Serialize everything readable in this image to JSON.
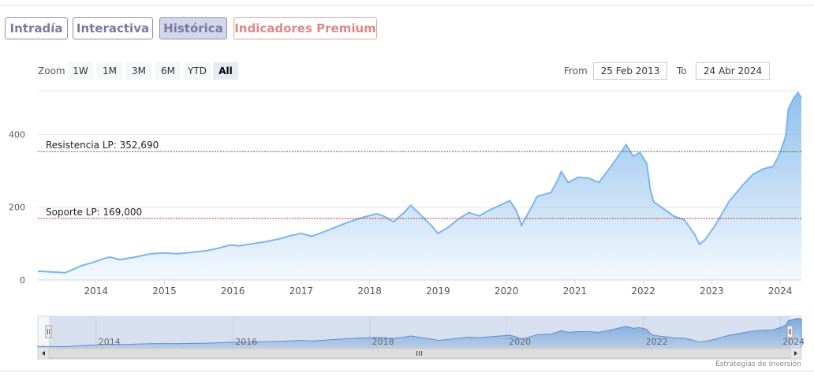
{
  "tabs": [
    {
      "label": "Intradía",
      "active": false
    },
    {
      "label": "Interactiva",
      "active": false
    },
    {
      "label": "Histórica",
      "active": true
    },
    {
      "label": "Indicadores Premium",
      "active": false
    }
  ],
  "zoom": {
    "label": "Zoom",
    "buttons": [
      "1W",
      "1M",
      "3M",
      "6M",
      "YTD",
      "All"
    ],
    "selected": "All"
  },
  "range": {
    "from_label": "From",
    "from_value": "25 Feb 2013",
    "to_label": "To",
    "to_value": "24 Abr 2024"
  },
  "credit": "Estrategias de Inversión",
  "colors": {
    "line": "#7cb5ec",
    "fill_top": "#7cb5ec",
    "resistance": "#2e7d32",
    "support": "#c62828"
  },
  "chart_data": {
    "type": "area",
    "x_range": [
      2013.15,
      2024.31
    ],
    "y_range": [
      0,
      520
    ],
    "y_ticks": [
      0,
      200,
      400
    ],
    "x_ticks": [
      2014,
      2015,
      2016,
      2017,
      2018,
      2019,
      2020,
      2021,
      2022,
      2023,
      2024
    ],
    "navigator_ticks": [
      2014,
      2016,
      2018,
      2020,
      2022,
      2024
    ],
    "navigator_range": [
      2013.15,
      2024.31
    ],
    "resistance": {
      "label": "Resistencia LP: 352,690",
      "value": 352.69
    },
    "support": {
      "label": "Soporte LP: 169,000",
      "value": 169.0
    },
    "series": [
      {
        "points": [
          [
            2013.15,
            24
          ],
          [
            2013.35,
            22
          ],
          [
            2013.55,
            20
          ],
          [
            2013.65,
            28
          ],
          [
            2013.8,
            40
          ],
          [
            2013.95,
            48
          ],
          [
            2014.1,
            58
          ],
          [
            2014.2,
            63
          ],
          [
            2014.35,
            56
          ],
          [
            2014.6,
            64
          ],
          [
            2014.8,
            72
          ],
          [
            2015.0,
            74
          ],
          [
            2015.2,
            72
          ],
          [
            2015.4,
            76
          ],
          [
            2015.6,
            80
          ],
          [
            2015.8,
            88
          ],
          [
            2015.95,
            96
          ],
          [
            2016.1,
            94
          ],
          [
            2016.3,
            100
          ],
          [
            2016.5,
            106
          ],
          [
            2016.7,
            114
          ],
          [
            2016.85,
            122
          ],
          [
            2017.0,
            128
          ],
          [
            2017.15,
            120
          ],
          [
            2017.3,
            130
          ],
          [
            2017.5,
            145
          ],
          [
            2017.7,
            160
          ],
          [
            2017.9,
            172
          ],
          [
            2018.1,
            182
          ],
          [
            2018.2,
            176
          ],
          [
            2018.35,
            160
          ],
          [
            2018.5,
            185
          ],
          [
            2018.6,
            205
          ],
          [
            2018.75,
            178
          ],
          [
            2018.9,
            150
          ],
          [
            2019.0,
            128
          ],
          [
            2019.15,
            145
          ],
          [
            2019.3,
            168
          ],
          [
            2019.45,
            185
          ],
          [
            2019.6,
            176
          ],
          [
            2019.75,
            192
          ],
          [
            2019.9,
            205
          ],
          [
            2020.05,
            218
          ],
          [
            2020.15,
            188
          ],
          [
            2020.22,
            150
          ],
          [
            2020.35,
            195
          ],
          [
            2020.45,
            230
          ],
          [
            2020.65,
            240
          ],
          [
            2020.75,
            275
          ],
          [
            2020.8,
            298
          ],
          [
            2020.9,
            268
          ],
          [
            2021.05,
            282
          ],
          [
            2021.2,
            280
          ],
          [
            2021.35,
            268
          ],
          [
            2021.5,
            305
          ],
          [
            2021.65,
            345
          ],
          [
            2021.75,
            372
          ],
          [
            2021.85,
            340
          ],
          [
            2021.95,
            350
          ],
          [
            2022.05,
            320
          ],
          [
            2022.1,
            250
          ],
          [
            2022.15,
            215
          ],
          [
            2022.3,
            195
          ],
          [
            2022.45,
            175
          ],
          [
            2022.6,
            165
          ],
          [
            2022.75,
            125
          ],
          [
            2022.82,
            98
          ],
          [
            2022.9,
            110
          ],
          [
            2023.05,
            150
          ],
          [
            2023.25,
            215
          ],
          [
            2023.45,
            260
          ],
          [
            2023.6,
            290
          ],
          [
            2023.75,
            305
          ],
          [
            2023.9,
            312
          ],
          [
            2024.0,
            350
          ],
          [
            2024.08,
            395
          ],
          [
            2024.12,
            470
          ],
          [
            2024.2,
            500
          ],
          [
            2024.26,
            515
          ],
          [
            2024.31,
            500
          ]
        ]
      }
    ]
  }
}
